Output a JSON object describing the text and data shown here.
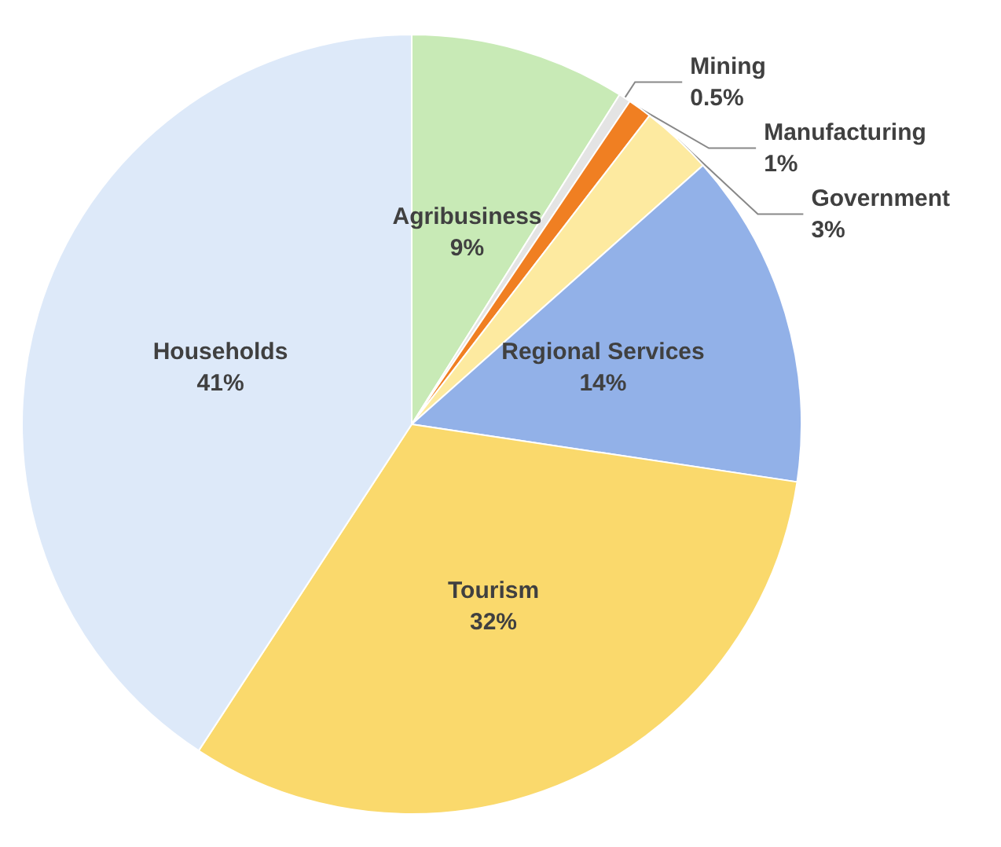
{
  "chart_data": {
    "type": "pie",
    "categories": [
      "Agribusiness",
      "Mining",
      "Manufacturing",
      "Government",
      "Regional Services",
      "Tourism",
      "Households"
    ],
    "values": [
      9,
      0.5,
      1,
      3,
      14,
      32,
      41
    ],
    "colors": [
      "#c8eab6",
      "#e4e4e4",
      "#f07f22",
      "#fdeaa0",
      "#92b1e8",
      "#fad96c",
      "#dde9f9"
    ],
    "value_labels": [
      "9%",
      "0.5%",
      "1%",
      "3%",
      "14%",
      "32%",
      "41%"
    ],
    "legend": false
  }
}
